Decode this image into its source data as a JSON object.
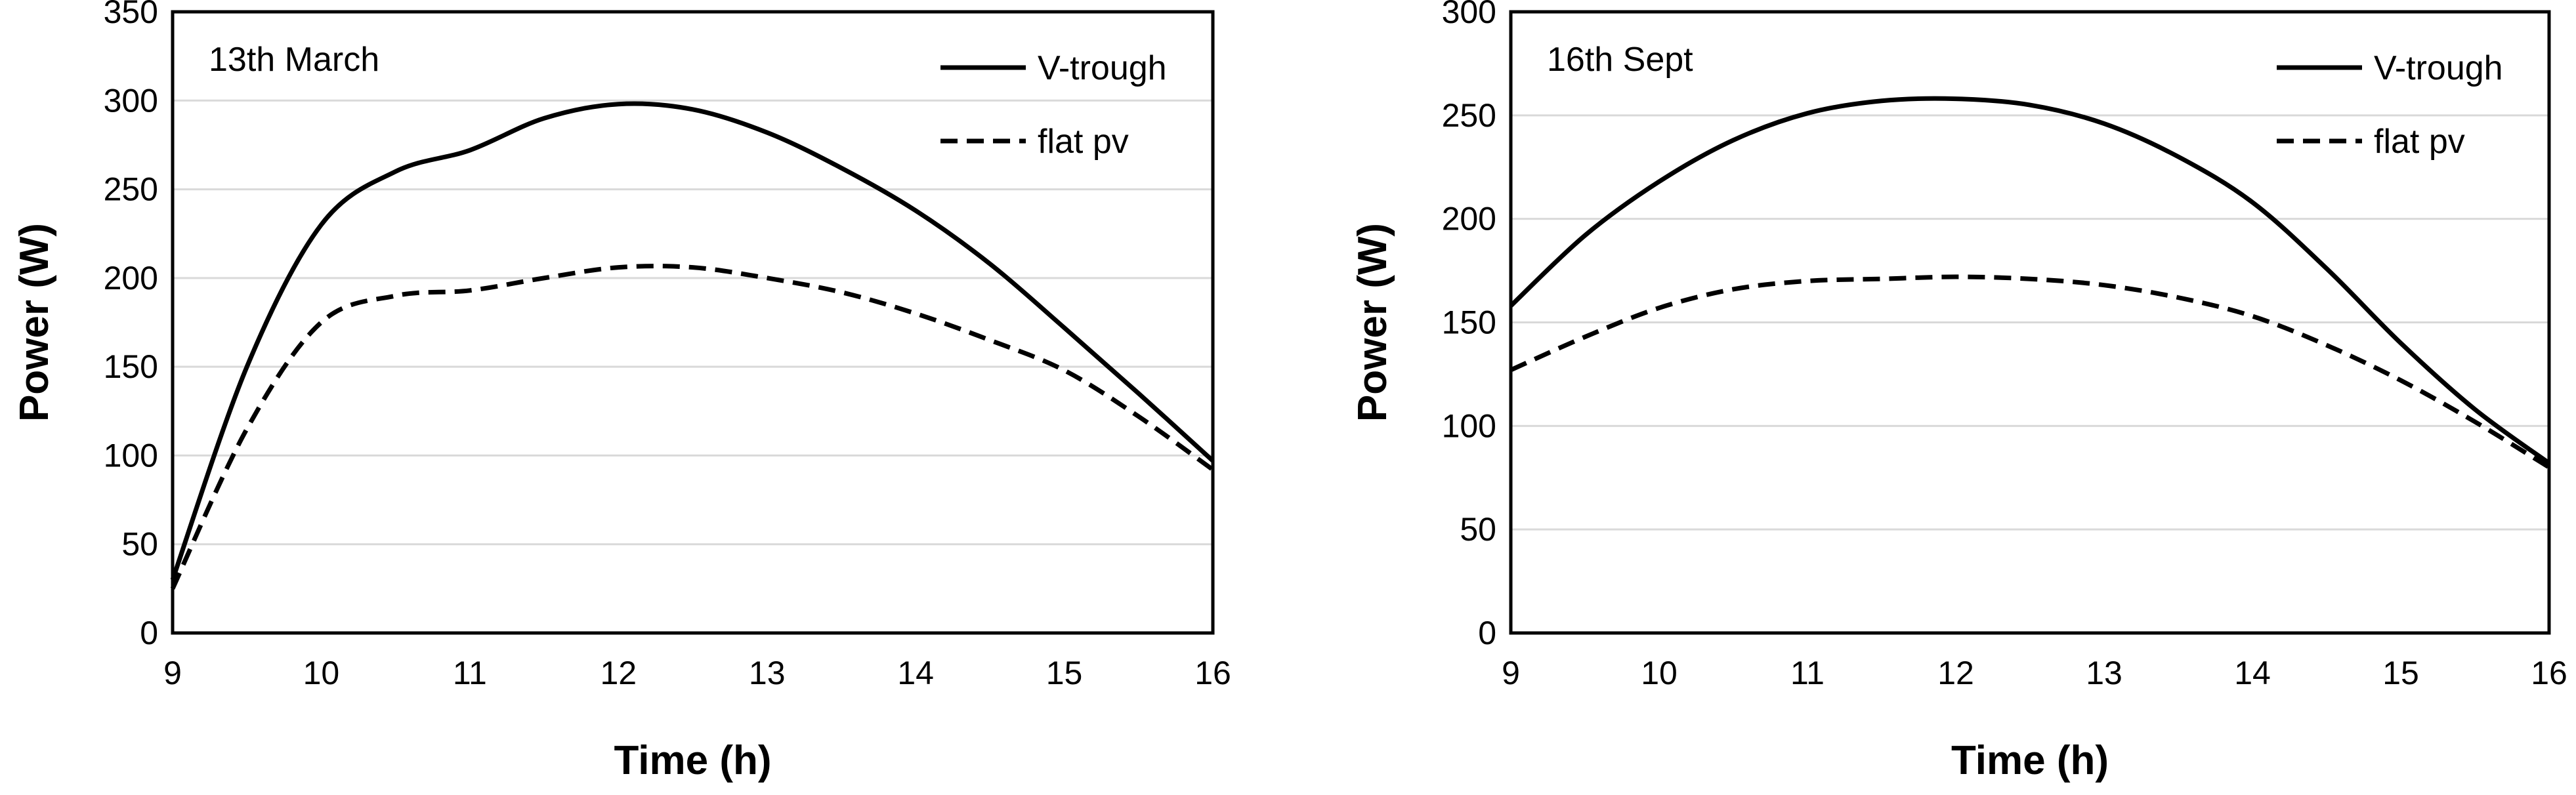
{
  "chart_data": [
    {
      "type": "line",
      "annotation": "13th March",
      "xlabel": "Time (h)",
      "ylabel": "Power (W)",
      "xlim": [
        9,
        16
      ],
      "ylim": [
        0,
        350
      ],
      "xticks": [
        9,
        10,
        11,
        12,
        13,
        14,
        15,
        16
      ],
      "yticks": [
        0,
        50,
        100,
        150,
        200,
        250,
        300,
        350
      ],
      "grid": "horizontal",
      "legend": "top-right",
      "series": [
        {
          "name": "V-trough",
          "style": "solid",
          "x": [
            9,
            9.5,
            10,
            10.5,
            11,
            11.5,
            12,
            12.5,
            13,
            13.5,
            14,
            14.5,
            15,
            15.5,
            16
          ],
          "y": [
            30,
            150,
            230,
            260,
            272,
            290,
            298,
            295,
            282,
            262,
            238,
            208,
            172,
            135,
            97
          ]
        },
        {
          "name": "flat pv",
          "style": "dashed",
          "x": [
            9,
            9.5,
            10,
            10.5,
            11,
            11.5,
            12,
            12.5,
            13,
            13.5,
            14,
            14.5,
            15,
            15.5,
            16
          ],
          "y": [
            25,
            115,
            175,
            190,
            193,
            200,
            206,
            206,
            200,
            192,
            180,
            165,
            148,
            122,
            92
          ]
        }
      ]
    },
    {
      "type": "line",
      "annotation": "16th Sept",
      "xlabel": "Time (h)",
      "ylabel": "Power (W)",
      "xlim": [
        9,
        16
      ],
      "ylim": [
        0,
        300
      ],
      "xticks": [
        9,
        10,
        11,
        12,
        13,
        14,
        15,
        16
      ],
      "yticks": [
        0,
        50,
        100,
        150,
        200,
        250,
        300
      ],
      "grid": "horizontal",
      "legend": "top-right",
      "series": [
        {
          "name": "V-trough",
          "style": "solid",
          "x": [
            9,
            9.5,
            10,
            10.5,
            11,
            11.5,
            12,
            12.5,
            13,
            13.5,
            14,
            14.5,
            15,
            15.5,
            16
          ],
          "y": [
            158,
            192,
            218,
            238,
            251,
            257,
            258,
            255,
            246,
            230,
            208,
            176,
            140,
            108,
            82
          ]
        },
        {
          "name": "flat pv",
          "style": "dashed",
          "x": [
            9,
            9.5,
            10,
            10.5,
            11,
            11.5,
            12,
            12.5,
            13,
            13.5,
            14,
            14.5,
            15,
            15.5,
            16
          ],
          "y": [
            127,
            143,
            157,
            166,
            170,
            171,
            172,
            171,
            168,
            162,
            153,
            139,
            122,
            102,
            80
          ]
        }
      ]
    }
  ]
}
